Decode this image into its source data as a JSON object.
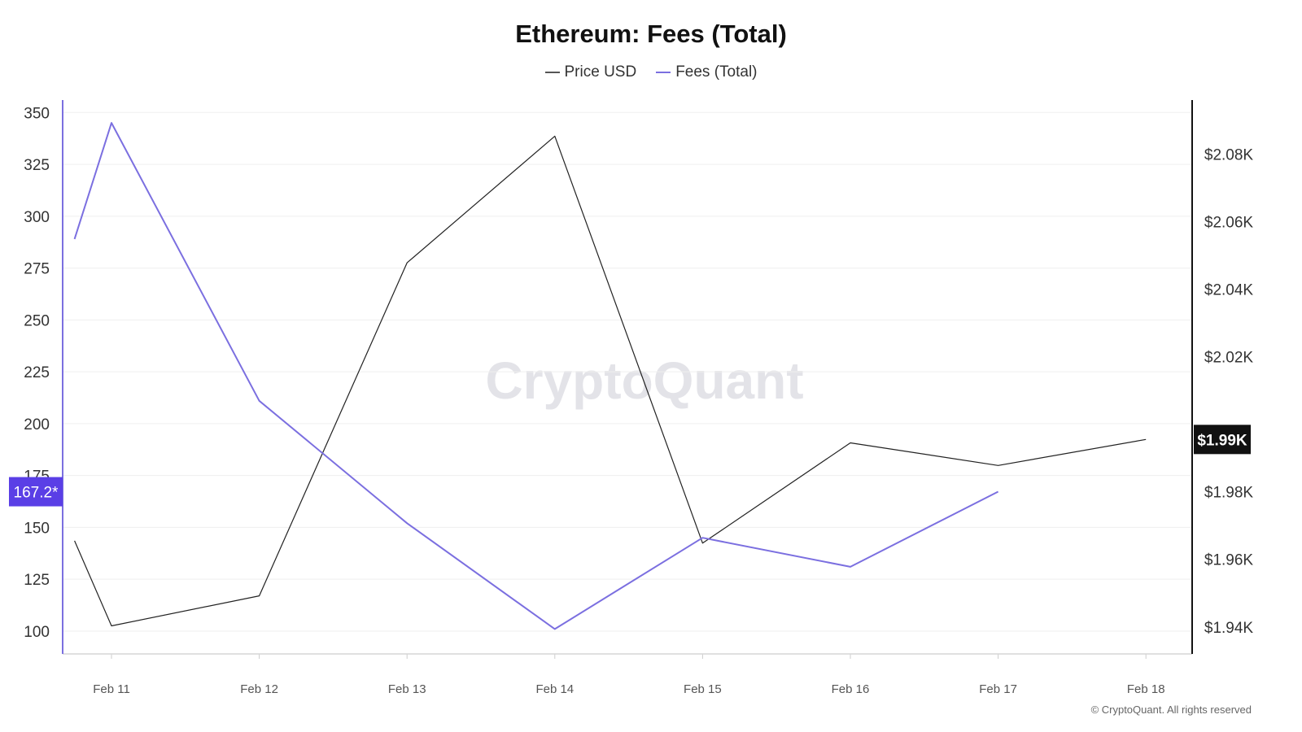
{
  "title": "Ethereum: Fees (Total)",
  "watermark": "CryptoQuant",
  "copyright": "© CryptoQuant. All rights reserved",
  "colors": {
    "price": "#222222",
    "fees": "#7b6fe0",
    "fees_badge": "#5a3fe6",
    "price_badge": "#111111"
  },
  "chart_data": {
    "type": "line",
    "title": "Ethereum: Fees (Total)",
    "x": [
      "Feb 11",
      "Feb 12",
      "Feb 13",
      "Feb 14",
      "Feb 15",
      "Feb 16",
      "Feb 17",
      "Feb 18"
    ],
    "y_left": {
      "ticks": [
        "350",
        "325",
        "300",
        "275",
        "250",
        "225",
        "200",
        "175",
        "150",
        "125",
        "100"
      ],
      "range": [
        89,
        356
      ]
    },
    "y_right": {
      "ticks": [
        "$2.08K",
        "$2.06K",
        "$2.04K",
        "$2.02K",
        "$1.99K",
        "$1.98K",
        "$1.96K",
        "$1.94K"
      ],
      "range": [
        1932,
        2096
      ]
    },
    "series": [
      {
        "name": "Price USD",
        "axis": "right",
        "points": [
          [
            "Feb 10.75",
            1965.5
          ],
          [
            "Feb 11",
            1940.3
          ],
          [
            "Feb 12",
            1949.2
          ],
          [
            "Feb 13",
            2047.8
          ],
          [
            "Feb 14",
            2085.3
          ],
          [
            "Feb 15",
            1964.8
          ],
          [
            "Feb 16",
            1994.5
          ],
          [
            "Feb 17",
            1987.8
          ],
          [
            "Feb 18",
            1995.5
          ]
        ]
      },
      {
        "name": "Fees (Total)",
        "axis": "left",
        "points": [
          [
            "Feb 10.75",
            289
          ],
          [
            "Feb 11",
            345
          ],
          [
            "Feb 12",
            211
          ],
          [
            "Feb 13",
            152
          ],
          [
            "Feb 14",
            101
          ],
          [
            "Feb 15",
            145
          ],
          [
            "Feb 16",
            131
          ],
          [
            "Feb 17",
            167.2
          ]
        ]
      }
    ],
    "badges": {
      "fees_last": "167.2*",
      "price_last": "$1.99K"
    },
    "grid": true,
    "legend": "top-center"
  }
}
